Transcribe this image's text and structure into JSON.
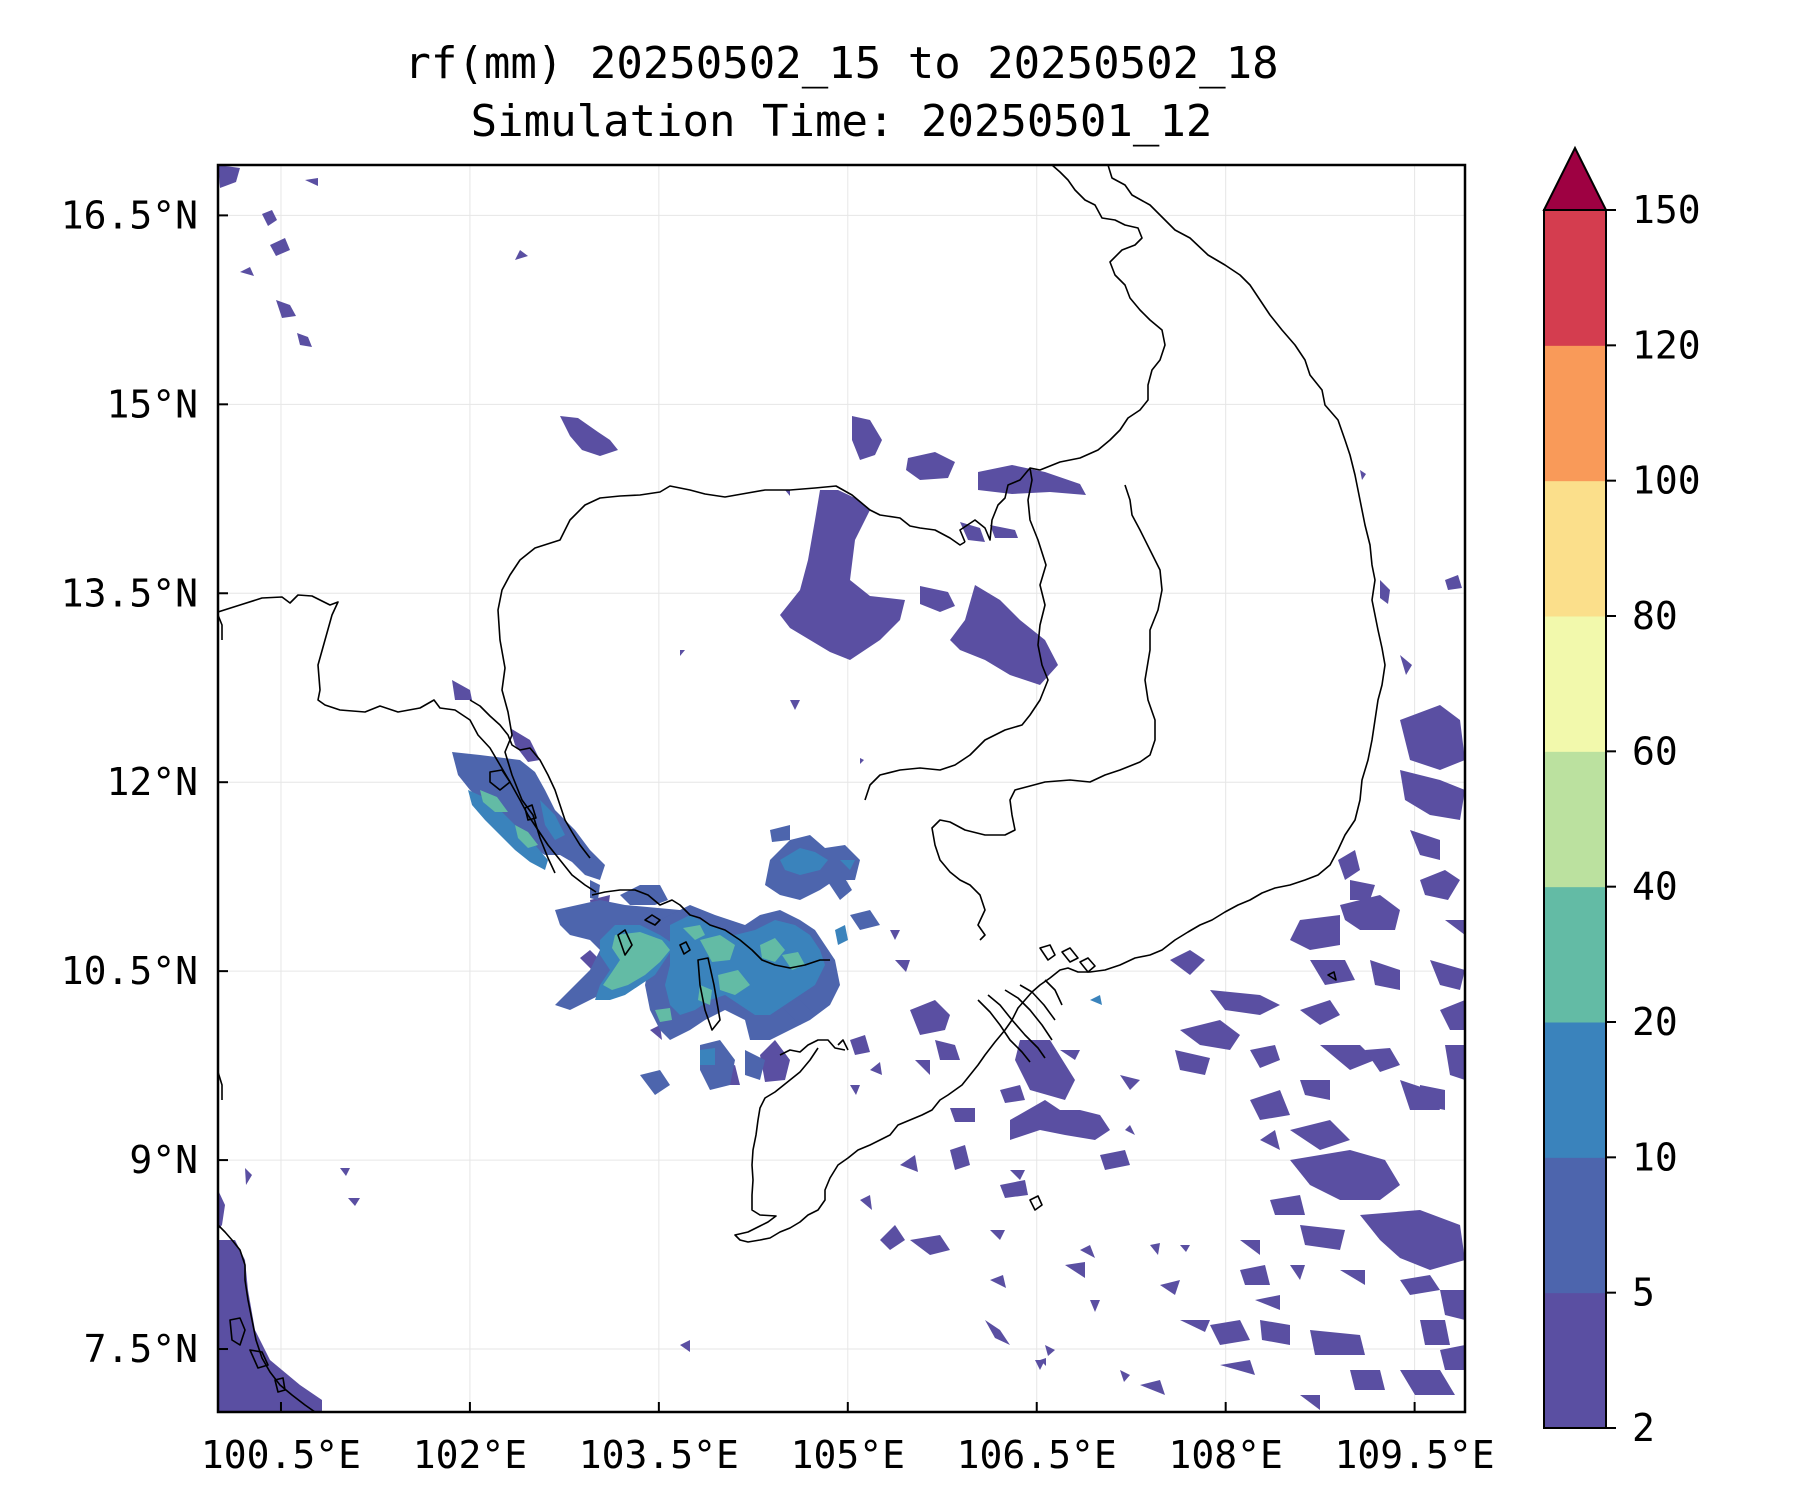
{
  "title": {
    "line1": "rf(mm) 20250502_15 to 20250502_18",
    "line2": "Simulation Time: 20250501_12"
  },
  "map": {
    "lon_range": [
      100.0,
      109.9
    ],
    "lat_range": [
      7.0,
      16.9
    ],
    "x_ticks": [
      {
        "value": 100.5,
        "label": "100.5°E"
      },
      {
        "value": 102.0,
        "label": "102°E"
      },
      {
        "value": 103.5,
        "label": "103.5°E"
      },
      {
        "value": 105.0,
        "label": "105°E"
      },
      {
        "value": 106.5,
        "label": "106.5°E"
      },
      {
        "value": 108.0,
        "label": "108°E"
      },
      {
        "value": 109.5,
        "label": "109.5°E"
      }
    ],
    "y_ticks": [
      {
        "value": 7.5,
        "label": "7.5°N"
      },
      {
        "value": 9.0,
        "label": "9°N"
      },
      {
        "value": 10.5,
        "label": "10.5°N"
      },
      {
        "value": 12.0,
        "label": "12°N"
      },
      {
        "value": 13.5,
        "label": "13.5°N"
      },
      {
        "value": 15.0,
        "label": "15°N"
      },
      {
        "value": 16.5,
        "label": "16.5°N"
      }
    ],
    "grid": true
  },
  "colorbar": {
    "extend": "max",
    "levels": [
      {
        "label": "2",
        "color": "#5a4fa2"
      },
      {
        "label": "5",
        "color": "#4d65ad"
      },
      {
        "label": "10",
        "color": "#3a83bc"
      },
      {
        "label": "20",
        "color": "#63bba5"
      },
      {
        "label": "40",
        "color": "#bbe19f"
      },
      {
        "label": "60",
        "color": "#f2f9ac"
      },
      {
        "label": "80",
        "color": "#fbdf8b"
      },
      {
        "label": "100",
        "color": "#f99a59"
      },
      {
        "label": "120",
        "color": "#d43d4f"
      },
      {
        "label": "150",
        "color": ""
      }
    ],
    "over_color": "#9e0142"
  }
}
